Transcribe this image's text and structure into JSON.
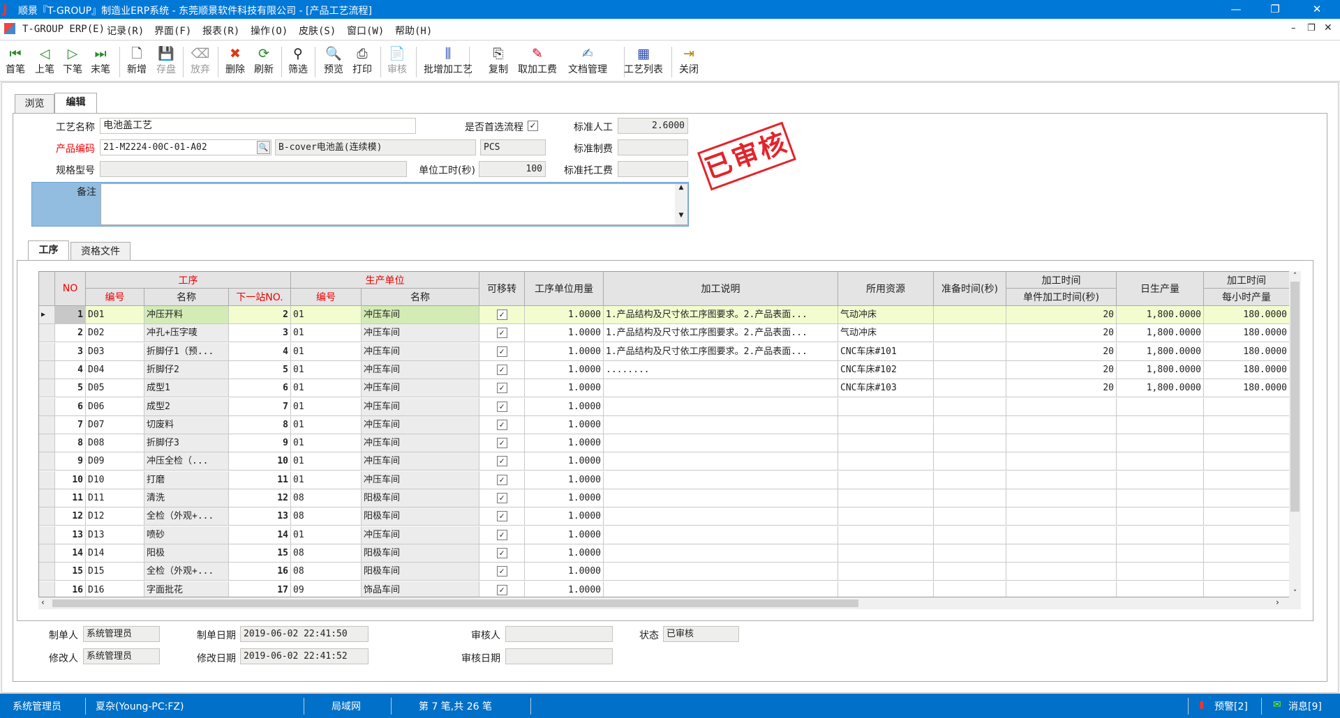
{
  "window": {
    "title": "顺景『T-GROUP』制造业ERP系统 - 东莞顺景软件科技有限公司 - [产品工艺流程]",
    "minimize": "—",
    "restore": "❐",
    "close": "✕"
  },
  "menu": [
    "T-GROUP ERP(E)",
    "记录(R)",
    "界面(F)",
    "报表(R)",
    "操作(O)",
    "皮肤(S)",
    "窗口(W)",
    "帮助(H)"
  ],
  "toolbar": [
    {
      "label": "首笔",
      "icon": "first-record-icon",
      "glyph": "⏮",
      "color": "#2a8a2a",
      "enabled": true
    },
    {
      "label": "上笔",
      "icon": "previous-record-icon",
      "glyph": "◁",
      "color": "#2a8a2a",
      "enabled": true
    },
    {
      "label": "下笔",
      "icon": "next-record-icon",
      "glyph": "▷",
      "color": "#2a8a2a",
      "enabled": true
    },
    {
      "label": "末笔",
      "icon": "last-record-icon",
      "glyph": "⏭",
      "color": "#2a8a2a",
      "enabled": true
    },
    {
      "label": "新增",
      "icon": "new-document-icon",
      "glyph": "🗋",
      "color": "#333",
      "enabled": true
    },
    {
      "label": "存盘",
      "icon": "save-disk-icon",
      "glyph": "💾",
      "color": "#999",
      "enabled": false
    },
    {
      "label": "放弃",
      "icon": "eraser-icon",
      "glyph": "⌫",
      "color": "#999",
      "enabled": false
    },
    {
      "label": "删除",
      "icon": "delete-x-icon",
      "glyph": "✖",
      "color": "#d83a1a",
      "enabled": true
    },
    {
      "label": "刷新",
      "icon": "refresh-icon",
      "glyph": "⟳",
      "color": "#2a8a2a",
      "enabled": true
    },
    {
      "label": "筛选",
      "icon": "binoculars-icon",
      "glyph": "⚲",
      "color": "#222",
      "enabled": true
    },
    {
      "label": "预览",
      "icon": "preview-magnifier-icon",
      "glyph": "🔍",
      "color": "#333",
      "enabled": true
    },
    {
      "label": "打印",
      "icon": "printer-icon",
      "glyph": "⎙",
      "color": "#333",
      "enabled": true
    },
    {
      "label": "审核",
      "icon": "audit-document-icon",
      "glyph": "📄",
      "color": "#999",
      "enabled": false
    },
    {
      "label": "批增加工艺",
      "icon": "batch-add-process-icon",
      "glyph": "⫼",
      "color": "#2a4ab0",
      "enabled": true
    },
    {
      "label": "复制",
      "icon": "copy-icon",
      "glyph": "⎘",
      "color": "#333",
      "enabled": true
    },
    {
      "label": "取加工费",
      "icon": "fetch-fee-icon",
      "glyph": "✎",
      "color": "#c02",
      "enabled": true
    },
    {
      "label": "文档管理",
      "icon": "document-manage-icon",
      "glyph": "✍",
      "color": "#3a7ab0",
      "enabled": true
    },
    {
      "label": "工艺列表",
      "icon": "list-table-icon",
      "glyph": "▦",
      "color": "#2a4ab0",
      "enabled": true
    },
    {
      "label": "关闭",
      "icon": "exit-door-icon",
      "glyph": "⇥",
      "color": "#b08a00",
      "enabled": true
    }
  ],
  "tabs": {
    "browse": "浏览",
    "edit": "编辑"
  },
  "form": {
    "process_name_label": "工艺名称",
    "process_name": "电池盖工艺",
    "preferred_label": "是否首选流程",
    "preferred": true,
    "std_labor_label": "标准人工",
    "std_labor": "2.6000",
    "product_code_label": "产品编码",
    "product_code": "21-M2224-00C-01-A02",
    "product_name": "B-cover电池盖(连续模)",
    "unit": "PCS",
    "std_mfg_label": "标准制费",
    "std_mfg": "",
    "spec_label": "规格型号",
    "spec": "",
    "unit_time_label": "单位工时(秒)",
    "unit_time": "100",
    "std_outsource_label": "标准托工费",
    "std_outsource": "",
    "remark_label": "备注",
    "remark": ""
  },
  "stamp": "已审核",
  "sub_tabs": {
    "process": "工序",
    "qualification": "资格文件"
  },
  "grid": {
    "group_headers": {
      "process": "工序",
      "unit": "生产单位",
      "proc_time": "加工时间",
      "proc_time2": "加工时间"
    },
    "headers": {
      "no": "NO",
      "code": "编号",
      "name": "名称",
      "next": "下一站NO.",
      "unit_code": "编号",
      "unit_name": "名称",
      "movable": "可移转",
      "usage": "工序单位用量",
      "desc": "加工说明",
      "resource": "所用资源",
      "prep": "准备时间(秒)",
      "unit_time": "单件加工时间(秒)",
      "daily": "日生产量",
      "hourly": "每小时产量"
    },
    "rows": [
      {
        "no": "1",
        "code": "D01",
        "name": "冲压开料",
        "next": "2",
        "unit_code": "01",
        "unit_name": "冲压车间",
        "movable": true,
        "usage": "1.0000",
        "desc": "1.产品结构及尺寸依工序图要求。2.产品表面...",
        "resource": "气动冲床",
        "prep": "",
        "unit_time": "20",
        "daily": "1,800.0000",
        "hourly": "180.0000"
      },
      {
        "no": "2",
        "code": "D02",
        "name": "冲孔+压字唛",
        "next": "3",
        "unit_code": "01",
        "unit_name": "冲压车间",
        "movable": true,
        "usage": "1.0000",
        "desc": "1.产品结构及尺寸依工序图要求。2.产品表面...",
        "resource": "气动冲床",
        "prep": "",
        "unit_time": "20",
        "daily": "1,800.0000",
        "hourly": "180.0000"
      },
      {
        "no": "3",
        "code": "D03",
        "name": "折脚仔1（预...",
        "next": "4",
        "unit_code": "01",
        "unit_name": "冲压车间",
        "movable": true,
        "usage": "1.0000",
        "desc": "1.产品结构及尺寸依工序图要求。2.产品表面...",
        "resource": "CNC车床#101",
        "prep": "",
        "unit_time": "20",
        "daily": "1,800.0000",
        "hourly": "180.0000"
      },
      {
        "no": "4",
        "code": "D04",
        "name": "折脚仔2",
        "next": "5",
        "unit_code": "01",
        "unit_name": "冲压车间",
        "movable": true,
        "usage": "1.0000",
        "desc": "........",
        "resource": "CNC车床#102",
        "prep": "",
        "unit_time": "20",
        "daily": "1,800.0000",
        "hourly": "180.0000"
      },
      {
        "no": "5",
        "code": "D05",
        "name": "成型1",
        "next": "6",
        "unit_code": "01",
        "unit_name": "冲压车间",
        "movable": true,
        "usage": "1.0000",
        "desc": "",
        "resource": "CNC车床#103",
        "prep": "",
        "unit_time": "20",
        "daily": "1,800.0000",
        "hourly": "180.0000"
      },
      {
        "no": "6",
        "code": "D06",
        "name": "成型2",
        "next": "7",
        "unit_code": "01",
        "unit_name": "冲压车间",
        "movable": true,
        "usage": "1.0000",
        "desc": "",
        "resource": "",
        "prep": "",
        "unit_time": "",
        "daily": "",
        "hourly": ""
      },
      {
        "no": "7",
        "code": "D07",
        "name": "切废料",
        "next": "8",
        "unit_code": "01",
        "unit_name": "冲压车间",
        "movable": true,
        "usage": "1.0000",
        "desc": "",
        "resource": "",
        "prep": "",
        "unit_time": "",
        "daily": "",
        "hourly": ""
      },
      {
        "no": "8",
        "code": "D08",
        "name": "折脚仔3",
        "next": "9",
        "unit_code": "01",
        "unit_name": "冲压车间",
        "movable": true,
        "usage": "1.0000",
        "desc": "",
        "resource": "",
        "prep": "",
        "unit_time": "",
        "daily": "",
        "hourly": ""
      },
      {
        "no": "9",
        "code": "D09",
        "name": "冲压全检（...",
        "next": "10",
        "unit_code": "01",
        "unit_name": "冲压车间",
        "movable": true,
        "usage": "1.0000",
        "desc": "",
        "resource": "",
        "prep": "",
        "unit_time": "",
        "daily": "",
        "hourly": ""
      },
      {
        "no": "10",
        "code": "D10",
        "name": "打磨",
        "next": "11",
        "unit_code": "01",
        "unit_name": "冲压车间",
        "movable": true,
        "usage": "1.0000",
        "desc": "",
        "resource": "",
        "prep": "",
        "unit_time": "",
        "daily": "",
        "hourly": ""
      },
      {
        "no": "11",
        "code": "D11",
        "name": "清洗",
        "next": "12",
        "unit_code": "08",
        "unit_name": "阳极车间",
        "movable": true,
        "usage": "1.0000",
        "desc": "",
        "resource": "",
        "prep": "",
        "unit_time": "",
        "daily": "",
        "hourly": ""
      },
      {
        "no": "12",
        "code": "D12",
        "name": "全检（外观+...",
        "next": "13",
        "unit_code": "08",
        "unit_name": "阳极车间",
        "movable": true,
        "usage": "1.0000",
        "desc": "",
        "resource": "",
        "prep": "",
        "unit_time": "",
        "daily": "",
        "hourly": ""
      },
      {
        "no": "13",
        "code": "D13",
        "name": "喷砂",
        "next": "14",
        "unit_code": "01",
        "unit_name": "冲压车间",
        "movable": true,
        "usage": "1.0000",
        "desc": "",
        "resource": "",
        "prep": "",
        "unit_time": "",
        "daily": "",
        "hourly": ""
      },
      {
        "no": "14",
        "code": "D14",
        "name": "阳极",
        "next": "15",
        "unit_code": "08",
        "unit_name": "阳极车间",
        "movable": true,
        "usage": "1.0000",
        "desc": "",
        "resource": "",
        "prep": "",
        "unit_time": "",
        "daily": "",
        "hourly": ""
      },
      {
        "no": "15",
        "code": "D15",
        "name": "全检（外观+...",
        "next": "16",
        "unit_code": "08",
        "unit_name": "阳极车间",
        "movable": true,
        "usage": "1.0000",
        "desc": "",
        "resource": "",
        "prep": "",
        "unit_time": "",
        "daily": "",
        "hourly": ""
      },
      {
        "no": "16",
        "code": "D16",
        "name": "字面批花",
        "next": "17",
        "unit_code": "09",
        "unit_name": "饰品车间",
        "movable": true,
        "usage": "1.0000",
        "desc": "",
        "resource": "",
        "prep": "",
        "unit_time": "",
        "daily": "",
        "hourly": ""
      }
    ]
  },
  "footer": {
    "creator_label": "制单人",
    "creator": "系统管理员",
    "create_date_label": "制单日期",
    "create_date": "2019-06-02 22:41:50",
    "auditor_label": "审核人",
    "auditor": "",
    "status_label": "状态",
    "status": "已审核",
    "modifier_label": "修改人",
    "modifier": "系统管理员",
    "modify_date_label": "修改日期",
    "modify_date": "2019-06-02 22:41:52",
    "audit_date_label": "审核日期",
    "audit_date": ""
  },
  "statusbar": {
    "user": "系统管理员",
    "host": "夏杂(Young-PC:FZ)",
    "network": "局域网",
    "record": "第 7 笔,共 26 笔",
    "alerts": "预警[2]",
    "messages": "消息[9]"
  },
  "colors": {
    "titlebar": "#0078d7",
    "statusbar": "#0070c8",
    "stamp": "#e3242b",
    "selected_row": "#f2fccf",
    "selected_name": "#d3ebb5"
  }
}
